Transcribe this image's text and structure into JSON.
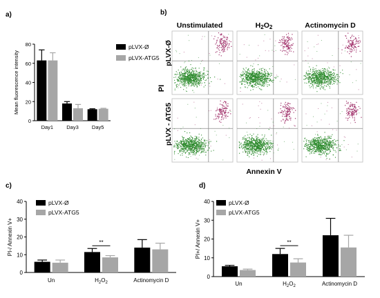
{
  "colors": {
    "series1": "#000000",
    "series2": "#a6a6a6",
    "axis": "#000000",
    "dots_green": "#2e8b2e",
    "dots_pink": "#a0306a",
    "quad_line": "#8a8a8a"
  },
  "panel_a": {
    "label": "a)",
    "chart_data": {
      "type": "bar",
      "categories": [
        "Day1",
        "Day3",
        "Day5"
      ],
      "series": [
        {
          "name": "pLVX-Ø",
          "values": [
            63,
            18,
            12
          ],
          "errors": [
            11,
            2,
            0.5
          ]
        },
        {
          "name": "pLVX-ATG5",
          "values": [
            63,
            13,
            12.5
          ],
          "errors": [
            8,
            4,
            0.5
          ]
        }
      ],
      "ylabel": "Mean fluorescence intensity",
      "ylim": [
        0,
        80
      ],
      "yticks": [
        0,
        20,
        40,
        60,
        80
      ],
      "legend": "right"
    }
  },
  "panel_b": {
    "label": "b)",
    "columns": [
      "Unstimulated",
      "H2O2",
      "Actinomycin D"
    ],
    "rows": [
      "pLVX-Ø",
      "pLVX - ATG5"
    ],
    "y_axis_label": "PI",
    "x_axis_label": "Annexin V"
  },
  "panel_c": {
    "label": "c)",
    "chart_data": {
      "type": "bar",
      "categories": [
        "Un",
        "H2O2",
        "Actinomycin D"
      ],
      "series": [
        {
          "name": "pLVX-Ø",
          "values": [
            6,
            11.5,
            14
          ],
          "errors": [
            1,
            2,
            4.5
          ]
        },
        {
          "name": "pLVX-ATG5",
          "values": [
            5.5,
            8.5,
            13
          ],
          "errors": [
            1.5,
            1,
            3.5
          ]
        }
      ],
      "ylabel": "PI-/ Annexin V+",
      "ylim": [
        0,
        40
      ],
      "yticks": [
        0,
        10,
        20,
        30,
        40
      ],
      "significance": {
        "label": "**",
        "category": "H2O2"
      },
      "legend": "top-left"
    }
  },
  "panel_d": {
    "label": "d)",
    "chart_data": {
      "type": "bar",
      "categories": [
        "Un",
        "H2O2",
        "Actinomycin D"
      ],
      "series": [
        {
          "name": "pLVX-Ø",
          "values": [
            5.5,
            12,
            22
          ],
          "errors": [
            0.5,
            3,
            9
          ]
        },
        {
          "name": "pLVX-ATG5",
          "values": [
            3.5,
            7.5,
            15.5
          ],
          "errors": [
            0.5,
            2,
            6.5
          ]
        }
      ],
      "ylabel": "PI+/ Annexin V+",
      "ylim": [
        0,
        40
      ],
      "yticks": [
        0,
        10,
        20,
        30,
        40
      ],
      "significance": {
        "label": "**",
        "category": "H2O2"
      },
      "legend": "top-left"
    }
  }
}
